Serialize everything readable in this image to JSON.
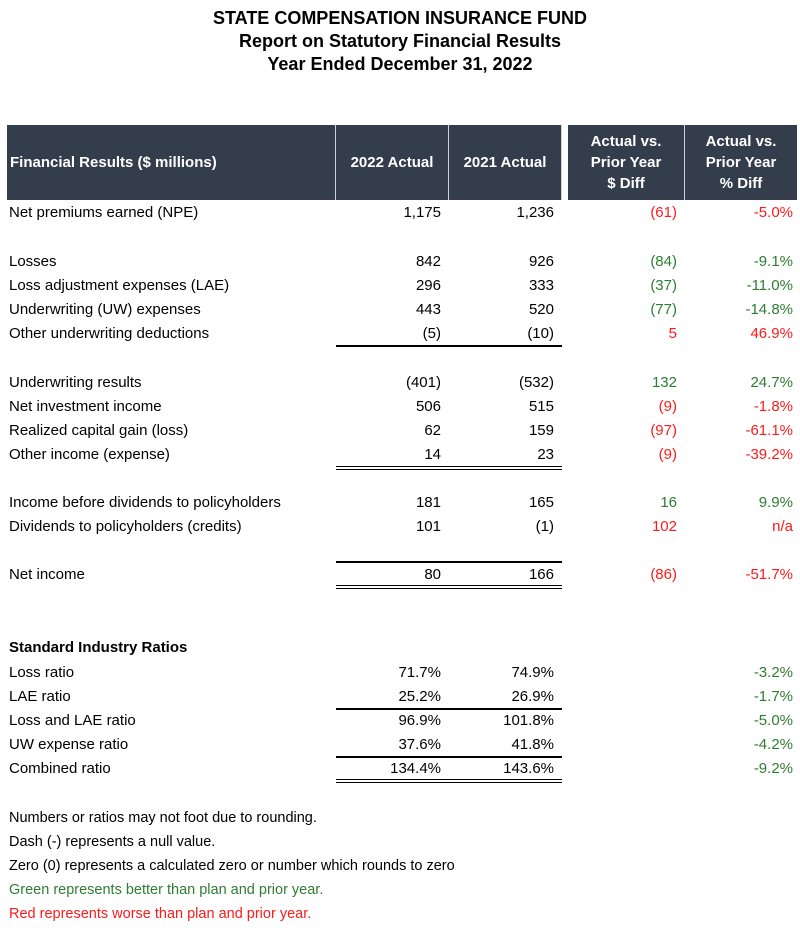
{
  "title": {
    "line1": "STATE COMPENSATION INSURANCE FUND",
    "line2": "Report on Statutory Financial Results",
    "line3": "Year Ended December 31, 2022"
  },
  "colors": {
    "header_bg": "#333d4c",
    "better": "#2e7d32",
    "worse": "#ff1a1a"
  },
  "header": {
    "label": "Financial Results ($ millions)",
    "col2022": "2022 Actual",
    "col2021": "2021 Actual",
    "diff": "Actual vs.\nPrior Year\n$ Diff",
    "pct": "Actual vs.\nPrior Year\n% Diff"
  },
  "rows": [
    {
      "label": "Net premiums earned (NPE)",
      "v2022": "1,175",
      "v2021": "1,236",
      "diff": "(61)",
      "pct": "-5.0%",
      "status": "worse"
    },
    {
      "label": "Losses",
      "v2022": "842",
      "v2021": "926",
      "diff": "(84)",
      "pct": "-9.1%",
      "status": "better"
    },
    {
      "label": "Loss adjustment expenses (LAE)",
      "v2022": "296",
      "v2021": "333",
      "diff": "(37)",
      "pct": "-11.0%",
      "status": "better"
    },
    {
      "label": "Underwriting (UW) expenses",
      "v2022": "443",
      "v2021": "520",
      "diff": "(77)",
      "pct": "-14.8%",
      "status": "better"
    },
    {
      "label": "Other underwriting deductions",
      "v2022": "(5)",
      "v2021": "(10)",
      "diff": "5",
      "pct": "46.9%",
      "status": "worse",
      "rule": "below"
    },
    {
      "label": "Underwriting results",
      "v2022": "(401)",
      "v2021": "(532)",
      "diff": "132",
      "pct": "24.7%",
      "status": "better"
    },
    {
      "label": "Net investment income",
      "v2022": "506",
      "v2021": "515",
      "diff": "(9)",
      "pct": "-1.8%",
      "status": "worse"
    },
    {
      "label": "Realized capital gain (loss)",
      "v2022": "62",
      "v2021": "159",
      "diff": "(97)",
      "pct": "-61.1%",
      "status": "worse"
    },
    {
      "label": "Other income (expense)",
      "v2022": "14",
      "v2021": "23",
      "diff": "(9)",
      "pct": "-39.2%",
      "status": "worse",
      "rule": "below"
    },
    {
      "label": "Income before dividends to policyholders",
      "v2022": "181",
      "v2021": "165",
      "diff": "16",
      "pct": "9.9%",
      "status": "better"
    },
    {
      "label": "Dividends to policyholders (credits)",
      "v2022": "101",
      "v2021": "(1)",
      "diff": "102",
      "pct": "n/a",
      "status": "worse"
    },
    {
      "label": "Net income",
      "v2022": "80",
      "v2021": "166",
      "diff": "(86)",
      "pct": "-51.7%",
      "status": "worse",
      "rule": "above-double-below"
    }
  ],
  "ratios": {
    "heading": "Standard Industry Ratios",
    "rows": [
      {
        "label": "Loss ratio",
        "v2022": "71.7%",
        "v2021": "74.9%",
        "pct": "-3.2%",
        "status": "better"
      },
      {
        "label": "LAE ratio",
        "v2022": "25.2%",
        "v2021": "26.9%",
        "pct": "-1.7%",
        "status": "better",
        "rule": "below"
      },
      {
        "label": "Loss and LAE ratio",
        "v2022": "96.9%",
        "v2021": "101.8%",
        "pct": "-5.0%",
        "status": "better"
      },
      {
        "label": "UW expense ratio",
        "v2022": "37.6%",
        "v2021": "41.8%",
        "pct": "-4.2%",
        "status": "better",
        "rule": "below"
      },
      {
        "label": "Combined ratio",
        "v2022": "134.4%",
        "v2021": "143.6%",
        "pct": "-9.2%",
        "status": "better",
        "rule": "double-below"
      }
    ]
  },
  "notes": [
    {
      "text": "Numbers or ratios may not foot due to rounding.",
      "status": "plain"
    },
    {
      "text": "Dash (-) represents a null value.",
      "status": "plain"
    },
    {
      "text": "Zero (0) represents a calculated zero or number which rounds to zero",
      "status": "plain"
    },
    {
      "text": "Green represents better than plan and prior year.",
      "status": "better"
    },
    {
      "text": "Red represents worse than plan and prior year.",
      "status": "worse"
    }
  ]
}
